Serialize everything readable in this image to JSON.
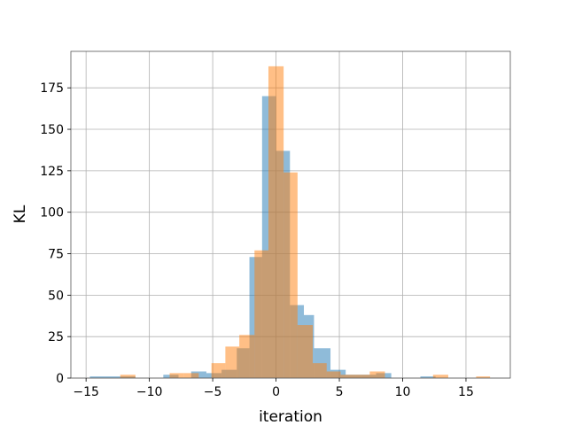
{
  "chart_data": {
    "type": "bar",
    "subtype": "overlapping-histogram",
    "title": "",
    "xlabel": "iteration",
    "ylabel": "KL",
    "xlim": [
      -16.2,
      18.5
    ],
    "ylim": [
      0,
      197
    ],
    "xticks": [
      -15,
      -10,
      -5,
      0,
      5,
      10,
      15
    ],
    "yticks": [
      0,
      25,
      50,
      75,
      100,
      125,
      150,
      175
    ],
    "grid": true,
    "legend": "none",
    "series": [
      {
        "color": "#1f77b4",
        "opacity": 0.5,
        "bins": [
          {
            "x0": -14.7,
            "x1": -13.5,
            "count": 1
          },
          {
            "x0": -13.5,
            "x1": -12.3,
            "count": 1
          },
          {
            "x0": -12.3,
            "x1": -11.1,
            "count": 1
          },
          {
            "x0": -8.9,
            "x1": -7.7,
            "count": 2
          },
          {
            "x0": -6.7,
            "x1": -5.5,
            "count": 4
          },
          {
            "x0": -5.5,
            "x1": -4.3,
            "count": 3
          },
          {
            "x0": -4.3,
            "x1": -3.1,
            "count": 5
          },
          {
            "x0": -3.1,
            "x1": -2.1,
            "count": 18
          },
          {
            "x0": -2.1,
            "x1": -1.1,
            "count": 73
          },
          {
            "x0": -1.1,
            "x1": 0.0,
            "count": 170
          },
          {
            "x0": 0.0,
            "x1": 1.1,
            "count": 137
          },
          {
            "x0": 1.1,
            "x1": 2.2,
            "count": 44
          },
          {
            "x0": 2.2,
            "x1": 3.0,
            "count": 38
          },
          {
            "x0": 3.0,
            "x1": 4.3,
            "count": 18
          },
          {
            "x0": 4.3,
            "x1": 5.5,
            "count": 5
          },
          {
            "x0": 5.5,
            "x1": 6.7,
            "count": 2
          },
          {
            "x0": 6.7,
            "x1": 7.9,
            "count": 2
          },
          {
            "x0": 7.9,
            "x1": 9.1,
            "count": 3
          },
          {
            "x0": 11.4,
            "x1": 12.6,
            "count": 1
          }
        ]
      },
      {
        "color": "#ff7f0e",
        "opacity": 0.5,
        "bins": [
          {
            "x0": -12.3,
            "x1": -11.1,
            "count": 2
          },
          {
            "x0": -8.4,
            "x1": -7.3,
            "count": 3
          },
          {
            "x0": -7.3,
            "x1": -6.1,
            "count": 3
          },
          {
            "x0": -5.1,
            "x1": -4.0,
            "count": 9
          },
          {
            "x0": -4.0,
            "x1": -2.9,
            "count": 19
          },
          {
            "x0": -2.9,
            "x1": -1.7,
            "count": 26
          },
          {
            "x0": -1.7,
            "x1": -0.6,
            "count": 77
          },
          {
            "x0": -0.6,
            "x1": 0.6,
            "count": 188
          },
          {
            "x0": 0.6,
            "x1": 1.7,
            "count": 124
          },
          {
            "x0": 1.7,
            "x1": 2.9,
            "count": 32
          },
          {
            "x0": 2.9,
            "x1": 4.0,
            "count": 9
          },
          {
            "x0": 4.0,
            "x1": 5.1,
            "count": 4
          },
          {
            "x0": 5.1,
            "x1": 6.3,
            "count": 2
          },
          {
            "x0": 6.3,
            "x1": 7.4,
            "count": 2
          },
          {
            "x0": 7.4,
            "x1": 8.6,
            "count": 4
          },
          {
            "x0": 12.4,
            "x1": 13.6,
            "count": 2
          },
          {
            "x0": 15.8,
            "x1": 16.9,
            "count": 1
          }
        ]
      }
    ]
  }
}
